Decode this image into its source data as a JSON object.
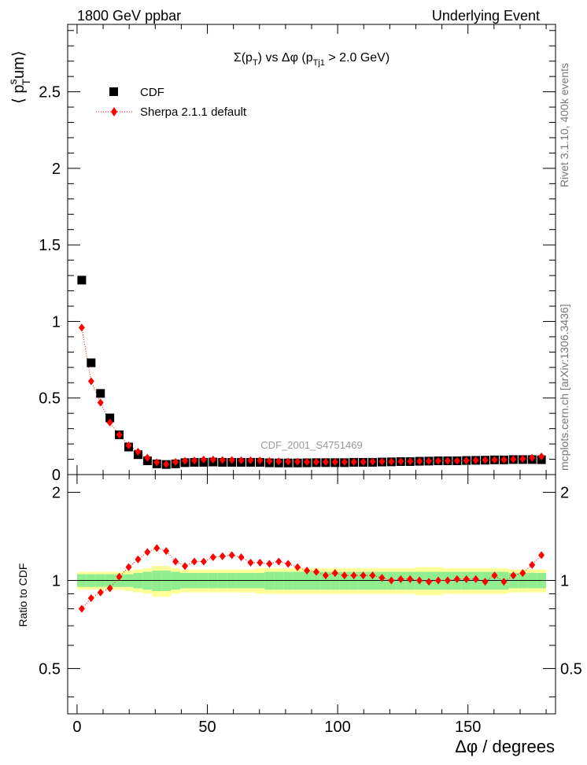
{
  "header": {
    "left": "1800 GeV ppbar",
    "right": "Underlying Event"
  },
  "side_labels": {
    "rivet": "Rivet 3.1.10,  400k events",
    "mcplots": "mcplots.cern.ch [arXiv:1306.3436]"
  },
  "analysis_label": "CDF_2001_S4751469",
  "colors": {
    "data": "#000000",
    "mc": "#ff0000",
    "band_stat": "#90ee90",
    "band_total": "#ffff99"
  },
  "chart_data": [
    {
      "type": "scatter",
      "title": "Σ(pT) vs Δφ (pTj1 > 2.0 GeV)",
      "title_parts": {
        "a": "Σ(p",
        "a_sub": "T",
        "b": ") vs Δφ (p",
        "b_sub": "Tj1",
        "c": " > 2.0 GeV)"
      },
      "ylabel": "⟨ p^s_T um⟩",
      "ylabel_parts": {
        "open": "⟨ p",
        "sup": "s",
        "sub": "T",
        "tail": "um⟩"
      },
      "xlim": [
        -3.6,
        183.6
      ],
      "ylim": [
        0,
        2.94
      ],
      "yticks": [
        0,
        0.5,
        1,
        1.5,
        2,
        2.5
      ],
      "ytick_labels": [
        "0",
        "0.5",
        "1",
        "1.5",
        "2",
        "2.5"
      ],
      "legend": [
        {
          "name": "CDF",
          "marker": "square"
        },
        {
          "name": "Sherpa 2.1.1 default",
          "marker": "diamond"
        }
      ],
      "x": [
        1.8,
        5.4,
        9.0,
        12.6,
        16.2,
        19.8,
        23.4,
        27.0,
        30.6,
        34.2,
        37.8,
        41.4,
        45.0,
        48.6,
        52.2,
        55.8,
        59.4,
        63.0,
        66.6,
        70.2,
        73.8,
        77.4,
        81.0,
        84.6,
        88.2,
        91.8,
        95.4,
        99.0,
        102.6,
        106.2,
        109.8,
        113.4,
        117.0,
        120.6,
        124.2,
        127.8,
        131.4,
        135.0,
        138.6,
        142.2,
        145.8,
        149.4,
        153.0,
        156.6,
        160.2,
        163.8,
        167.4,
        171.0,
        174.6,
        178.2
      ],
      "series": [
        {
          "name": "CDF",
          "values": [
            1.27,
            0.73,
            0.53,
            0.37,
            0.26,
            0.18,
            0.13,
            0.09,
            0.07,
            0.066,
            0.07,
            0.078,
            0.08,
            0.08,
            0.082,
            0.08,
            0.08,
            0.08,
            0.08,
            0.08,
            0.077,
            0.076,
            0.076,
            0.076,
            0.077,
            0.078,
            0.078,
            0.078,
            0.078,
            0.08,
            0.08,
            0.08,
            0.082,
            0.083,
            0.085,
            0.085,
            0.087,
            0.088,
            0.09,
            0.09,
            0.09,
            0.092,
            0.093,
            0.094,
            0.096,
            0.096,
            0.098,
            0.098,
            0.098,
            0.097
          ]
        },
        {
          "name": "Sherpa 2.1.1 default",
          "values": [
            0.96,
            0.61,
            0.47,
            0.34,
            0.26,
            0.19,
            0.15,
            0.11,
            0.08,
            0.068,
            0.082,
            0.09,
            0.092,
            0.098,
            0.098,
            0.095,
            0.095,
            0.093,
            0.093,
            0.092,
            0.088,
            0.086,
            0.085,
            0.084,
            0.083,
            0.082,
            0.082,
            0.082,
            0.082,
            0.083,
            0.083,
            0.085,
            0.085,
            0.085,
            0.086,
            0.087,
            0.087,
            0.088,
            0.09,
            0.09,
            0.09,
            0.092,
            0.093,
            0.095,
            0.096,
            0.097,
            0.1,
            0.103,
            0.11,
            0.118
          ]
        }
      ]
    },
    {
      "type": "scatter",
      "title": "",
      "ylabel": "Ratio to CDF",
      "xlabel": "Δφ / degrees",
      "xlim": [
        -3.6,
        183.6
      ],
      "ylim": [
        0.35,
        2.3
      ],
      "xticks": [
        0,
        50,
        100,
        150
      ],
      "xtick_labels": [
        "0",
        "50",
        "100",
        "150"
      ],
      "yticks": [
        0.5,
        1,
        2
      ],
      "ytick_labels": [
        "0.5",
        "1",
        "2"
      ],
      "x": [
        1.8,
        5.4,
        9.0,
        12.6,
        16.2,
        19.8,
        23.4,
        27.0,
        30.6,
        34.2,
        37.8,
        41.4,
        45.0,
        48.6,
        52.2,
        55.8,
        59.4,
        63.0,
        66.6,
        70.2,
        73.8,
        77.4,
        81.0,
        84.6,
        88.2,
        91.8,
        95.4,
        99.0,
        102.6,
        106.2,
        109.8,
        113.4,
        117.0,
        120.6,
        124.2,
        127.8,
        131.4,
        135.0,
        138.6,
        142.2,
        145.8,
        149.4,
        153.0,
        156.6,
        160.2,
        163.8,
        167.4,
        171.0,
        174.6,
        178.2
      ],
      "series": [
        {
          "name": "Sherpa 2.1.1 default / CDF",
          "values": [
            0.8,
            0.87,
            0.91,
            0.94,
            1.03,
            1.11,
            1.18,
            1.25,
            1.29,
            1.26,
            1.16,
            1.12,
            1.16,
            1.16,
            1.2,
            1.21,
            1.22,
            1.2,
            1.15,
            1.15,
            1.14,
            1.16,
            1.14,
            1.11,
            1.08,
            1.07,
            1.04,
            1.06,
            1.04,
            1.04,
            1.04,
            1.04,
            1.02,
            1.0,
            1.01,
            1.01,
            1.0,
            0.99,
            1.0,
            1.0,
            1.01,
            1.01,
            1.01,
            0.99,
            1.04,
            0.99,
            1.04,
            1.06,
            1.13,
            1.22
          ]
        }
      ],
      "band_stat_halfwidth": [
        0.05,
        0.05,
        0.05,
        0.05,
        0.05,
        0.05,
        0.06,
        0.07,
        0.08,
        0.08,
        0.07,
        0.06,
        0.06,
        0.06,
        0.06,
        0.06,
        0.06,
        0.06,
        0.06,
        0.06,
        0.07,
        0.07,
        0.07,
        0.07,
        0.07,
        0.07,
        0.07,
        0.07,
        0.07,
        0.07,
        0.07,
        0.07,
        0.07,
        0.07,
        0.07,
        0.07,
        0.07,
        0.07,
        0.07,
        0.07,
        0.07,
        0.07,
        0.07,
        0.07,
        0.07,
        0.07,
        0.06,
        0.06,
        0.06,
        0.06
      ],
      "band_total_halfwidth": [
        0.07,
        0.07,
        0.07,
        0.07,
        0.07,
        0.08,
        0.09,
        0.1,
        0.12,
        0.12,
        0.1,
        0.09,
        0.09,
        0.09,
        0.09,
        0.09,
        0.09,
        0.09,
        0.09,
        0.1,
        0.1,
        0.1,
        0.1,
        0.1,
        0.1,
        0.1,
        0.1,
        0.1,
        0.1,
        0.1,
        0.1,
        0.1,
        0.1,
        0.1,
        0.1,
        0.1,
        0.11,
        0.11,
        0.11,
        0.1,
        0.1,
        0.1,
        0.1,
        0.1,
        0.1,
        0.1,
        0.09,
        0.09,
        0.09,
        0.09
      ]
    }
  ]
}
